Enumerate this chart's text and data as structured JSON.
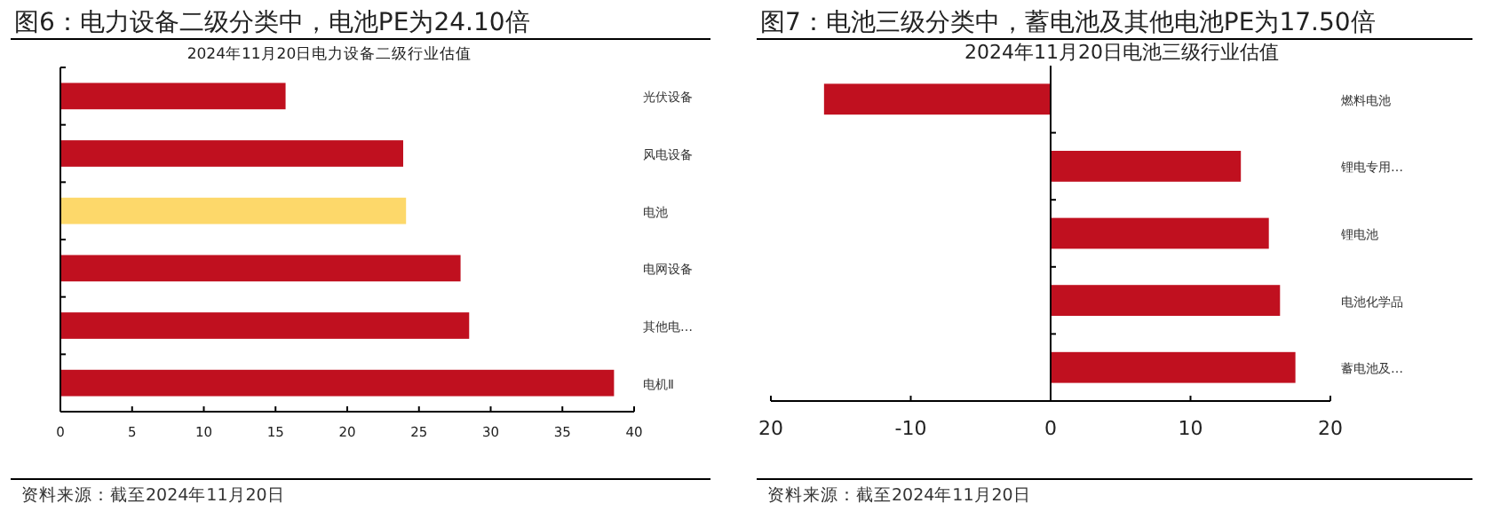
{
  "chart_data": [
    {
      "type": "bar",
      "orientation": "horizontal",
      "title": "图6：电力设备二级分类中，电池PE为24.10倍",
      "subtitle": "2024年11月20日电力设备二级行业估值",
      "categories": [
        "光伏设备",
        "风电设备",
        "电池",
        "电网设备",
        "其他电…",
        "电机Ⅱ"
      ],
      "values": [
        15.7,
        23.9,
        24.1,
        27.9,
        28.5,
        38.6
      ],
      "colors": [
        "#c0101f",
        "#c0101f",
        "#fdd86a",
        "#c0101f",
        "#c0101f",
        "#c0101f"
      ],
      "xlim": [
        0,
        40
      ],
      "xticks": [
        0,
        5,
        10,
        15,
        20,
        25,
        30,
        35,
        40
      ],
      "annotations": [
        "资料来源：截至2024年11月20日"
      ]
    },
    {
      "type": "bar",
      "orientation": "horizontal",
      "title": "图7：电池三级分类中，蓄电池及其他电池PE为17.50倍",
      "subtitle": "2024年11月20日电池三级行业估值",
      "categories": [
        "燃料电池",
        "锂电专用…",
        "锂电池",
        "电池化学品",
        "蓄电池及…"
      ],
      "values": [
        -16.2,
        13.6,
        15.6,
        16.4,
        17.5
      ],
      "colors": [
        "#c0101f",
        "#c0101f",
        "#c0101f",
        "#c0101f",
        "#c0101f"
      ],
      "xlim": [
        -20,
        20
      ],
      "xticks": [
        {
          "value": -20,
          "label": "20"
        },
        -10,
        0,
        10,
        20
      ],
      "annotations": [
        "资料来源：截至2024年11月20日"
      ]
    }
  ]
}
